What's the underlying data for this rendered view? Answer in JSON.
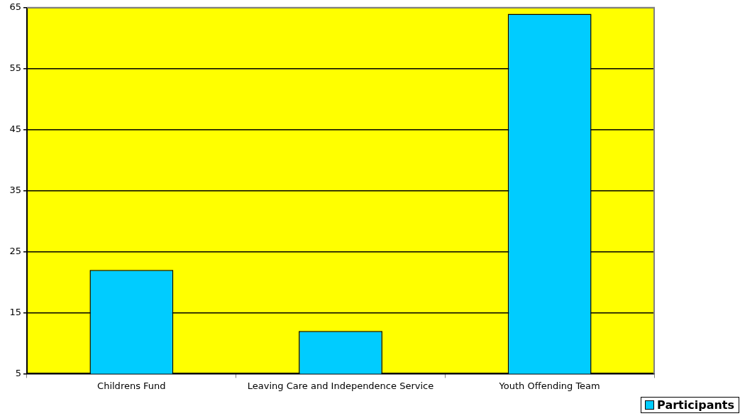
{
  "chart_data": {
    "type": "bar",
    "categories": [
      "Childrens Fund",
      "Leaving Care and Independence Service",
      "Youth Offending Team"
    ],
    "series": [
      {
        "name": "Participants",
        "color": "#00ccff",
        "values": [
          22,
          12,
          64
        ]
      }
    ],
    "ylim": [
      5,
      65
    ],
    "yticks": [
      5,
      15,
      25,
      35,
      45,
      55,
      65
    ],
    "grid": "y",
    "legend": "bottom right"
  }
}
